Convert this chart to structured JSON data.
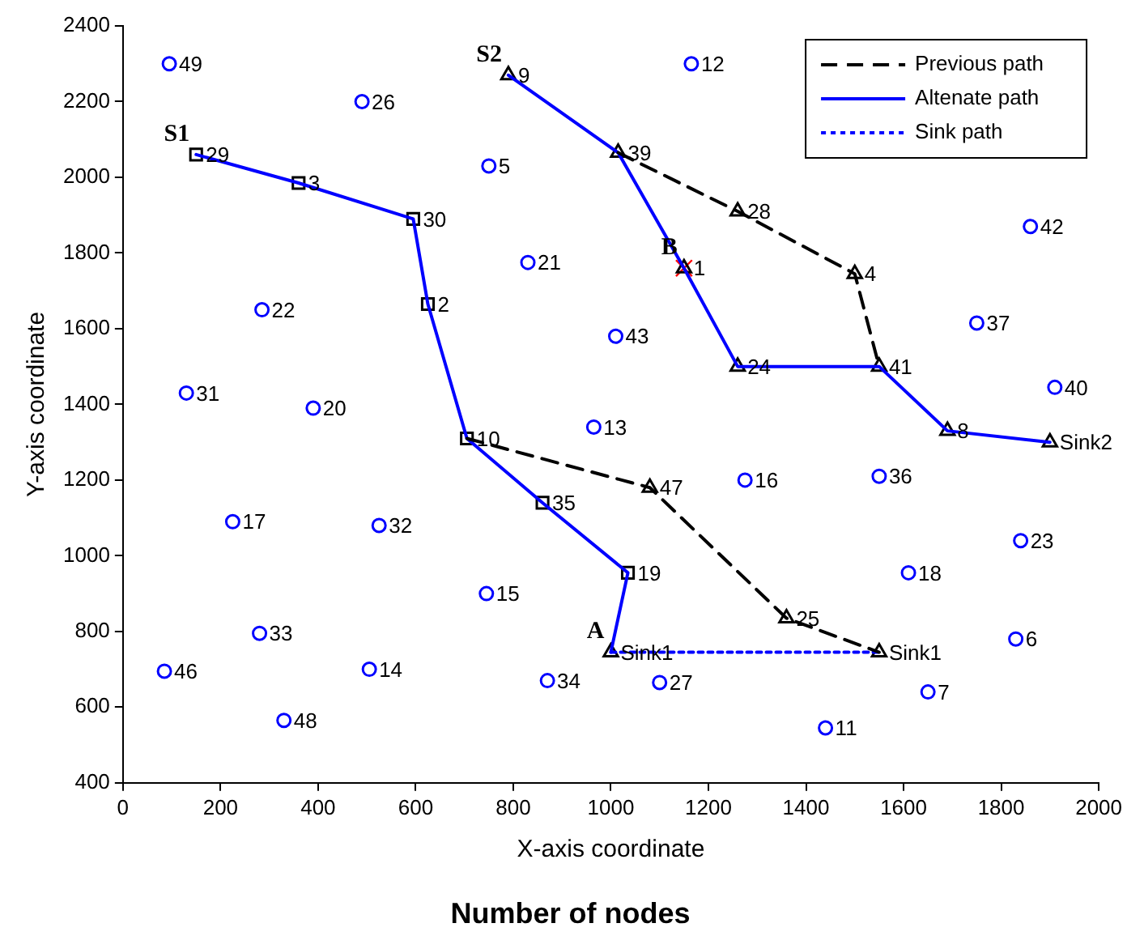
{
  "chart_data": {
    "type": "scatter",
    "xlabel": "X-axis coordinate",
    "ylabel": "Y-axis coordinate",
    "xlim": [
      0,
      2000
    ],
    "xticks": [
      0,
      200,
      400,
      600,
      800,
      1000,
      1200,
      1400,
      1600,
      1800,
      2000
    ],
    "ylim": [
      400,
      2400
    ],
    "yticks": [
      400,
      600,
      800,
      1000,
      1200,
      1400,
      1600,
      1800,
      2000,
      2200,
      2400
    ],
    "grid": false,
    "legend": "top right",
    "annotations": [
      {
        "text": "S1",
        "x": 150,
        "y": 2060
      },
      {
        "text": "S2",
        "x": 790,
        "y": 2270
      },
      {
        "text": "A",
        "x": 1000,
        "y": 745
      },
      {
        "text": "B",
        "x": 1150,
        "y": 1760
      },
      {
        "text": "29",
        "x": 150,
        "y": 2060
      },
      {
        "text": "3",
        "x": 360,
        "y": 1985
      },
      {
        "text": "30",
        "x": 595,
        "y": 1890
      },
      {
        "text": "2",
        "x": 625,
        "y": 1665
      },
      {
        "text": "10",
        "x": 705,
        "y": 1310
      },
      {
        "text": "35",
        "x": 860,
        "y": 1140
      },
      {
        "text": "19",
        "x": 1035,
        "y": 955
      },
      {
        "text": "Sink1",
        "x": 1000,
        "y": 745
      },
      {
        "text": "9",
        "x": 790,
        "y": 2270
      },
      {
        "text": "39",
        "x": 1015,
        "y": 2065
      },
      {
        "text": "1",
        "x": 1150,
        "y": 1760
      },
      {
        "text": "24",
        "x": 1260,
        "y": 1500
      },
      {
        "text": "41",
        "x": 1550,
        "y": 1500
      },
      {
        "text": "8",
        "x": 1690,
        "y": 1330
      },
      {
        "text": "Sink2",
        "x": 1900,
        "y": 1300
      },
      {
        "text": "47",
        "x": 1080,
        "y": 1180
      },
      {
        "text": "25",
        "x": 1360,
        "y": 835
      },
      {
        "text": "Sink1",
        "x": 1550,
        "y": 745
      },
      {
        "text": "28",
        "x": 1260,
        "y": 1910
      },
      {
        "text": "4",
        "x": 1500,
        "y": 1745
      },
      {
        "text": "49",
        "x": 95,
        "y": 2300
      },
      {
        "text": "26",
        "x": 490,
        "y": 2200
      },
      {
        "text": "5",
        "x": 750,
        "y": 2030
      },
      {
        "text": "21",
        "x": 830,
        "y": 1775
      },
      {
        "text": "22",
        "x": 285,
        "y": 1650
      },
      {
        "text": "43",
        "x": 1010,
        "y": 1580
      },
      {
        "text": "31",
        "x": 130,
        "y": 1430
      },
      {
        "text": "20",
        "x": 390,
        "y": 1390
      },
      {
        "text": "13",
        "x": 965,
        "y": 1340
      },
      {
        "text": "17",
        "x": 225,
        "y": 1090
      },
      {
        "text": "32",
        "x": 525,
        "y": 1080
      },
      {
        "text": "15",
        "x": 745,
        "y": 900
      },
      {
        "text": "33",
        "x": 280,
        "y": 795
      },
      {
        "text": "46",
        "x": 85,
        "y": 695
      },
      {
        "text": "14",
        "x": 505,
        "y": 700
      },
      {
        "text": "48",
        "x": 330,
        "y": 565
      },
      {
        "text": "34",
        "x": 870,
        "y": 670
      },
      {
        "text": "27",
        "x": 1100,
        "y": 665
      },
      {
        "text": "11",
        "x": 1440,
        "y": 545
      },
      {
        "text": "7",
        "x": 1650,
        "y": 640
      },
      {
        "text": "6",
        "x": 1830,
        "y": 780
      },
      {
        "text": "12",
        "x": 1165,
        "y": 2300
      },
      {
        "text": "42",
        "x": 1860,
        "y": 1870
      },
      {
        "text": "37",
        "x": 1750,
        "y": 1615
      },
      {
        "text": "40",
        "x": 1910,
        "y": 1445
      },
      {
        "text": "16",
        "x": 1275,
        "y": 1200
      },
      {
        "text": "36",
        "x": 1550,
        "y": 1210
      },
      {
        "text": "23",
        "x": 1840,
        "y": 1040
      },
      {
        "text": "18",
        "x": 1610,
        "y": 955
      },
      "Number of nodes"
    ],
    "series": [
      {
        "name": "Previous path",
        "type": "line",
        "color": "#000000",
        "line_style": "dashed",
        "marker": "none",
        "x": [
          705,
          1080,
          1360,
          1550
        ],
        "values": [
          1310,
          1180,
          835,
          745
        ]
      },
      {
        "type": "line",
        "color": "#000000",
        "line_style": "dashed",
        "marker": "none",
        "x": [
          1015,
          1260,
          1500,
          1550
        ],
        "values": [
          2065,
          1910,
          1745,
          1500
        ]
      },
      {
        "name": "Altenate path",
        "type": "line",
        "color": "#0000ff",
        "line_style": "solid",
        "marker": "none",
        "x": [
          150,
          360,
          595,
          625,
          705,
          860,
          1035,
          1000
        ],
        "values": [
          2060,
          1985,
          1890,
          1665,
          1310,
          1140,
          955,
          745
        ]
      },
      {
        "type": "line",
        "color": "#0000ff",
        "line_style": "solid",
        "marker": "none",
        "x": [
          790,
          1015,
          1150,
          1260,
          1550,
          1690,
          1900
        ],
        "values": [
          2270,
          2065,
          1760,
          1500,
          1500,
          1330,
          1300
        ]
      },
      {
        "name": "Sink path",
        "type": "line",
        "color": "#0000ff",
        "line_style": "dotted",
        "marker": "none",
        "x": [
          1000,
          1550
        ],
        "values": [
          745,
          745
        ]
      },
      {
        "color": "#000000",
        "marker": "square",
        "x": [
          150,
          360,
          595,
          625,
          705,
          860,
          1035
        ],
        "values": [
          2060,
          1985,
          1890,
          1665,
          1310,
          1140,
          955
        ]
      },
      {
        "color": "#000000",
        "marker": "triangle",
        "x": [
          1000,
          790,
          1015,
          1150,
          1260,
          1550,
          1690,
          1900,
          1080,
          1360,
          1550,
          1260,
          1500
        ],
        "values": [
          745,
          2270,
          2065,
          1760,
          1500,
          1500,
          1330,
          1300,
          1180,
          835,
          745,
          1910,
          1745
        ]
      },
      {
        "color": "#ff0000",
        "marker": "cross",
        "x": [
          1150
        ],
        "values": [
          1760
        ]
      },
      {
        "color": "#0000ff",
        "marker": "circle",
        "x": [
          95,
          490,
          750,
          830,
          285,
          1010,
          130,
          390,
          965,
          225,
          525,
          745,
          280,
          85,
          505,
          330,
          870,
          1100,
          1440,
          1650,
          1830,
          1165,
          1860,
          1750,
          1910,
          1275,
          1550,
          1840,
          1610
        ],
        "values": [
          2300,
          2200,
          2030,
          1775,
          1650,
          1580,
          1430,
          1390,
          1340,
          1090,
          1080,
          900,
          795,
          695,
          700,
          565,
          670,
          665,
          545,
          640,
          780,
          2300,
          1870,
          1615,
          1445,
          1200,
          1210,
          1040,
          955
        ]
      }
    ]
  }
}
